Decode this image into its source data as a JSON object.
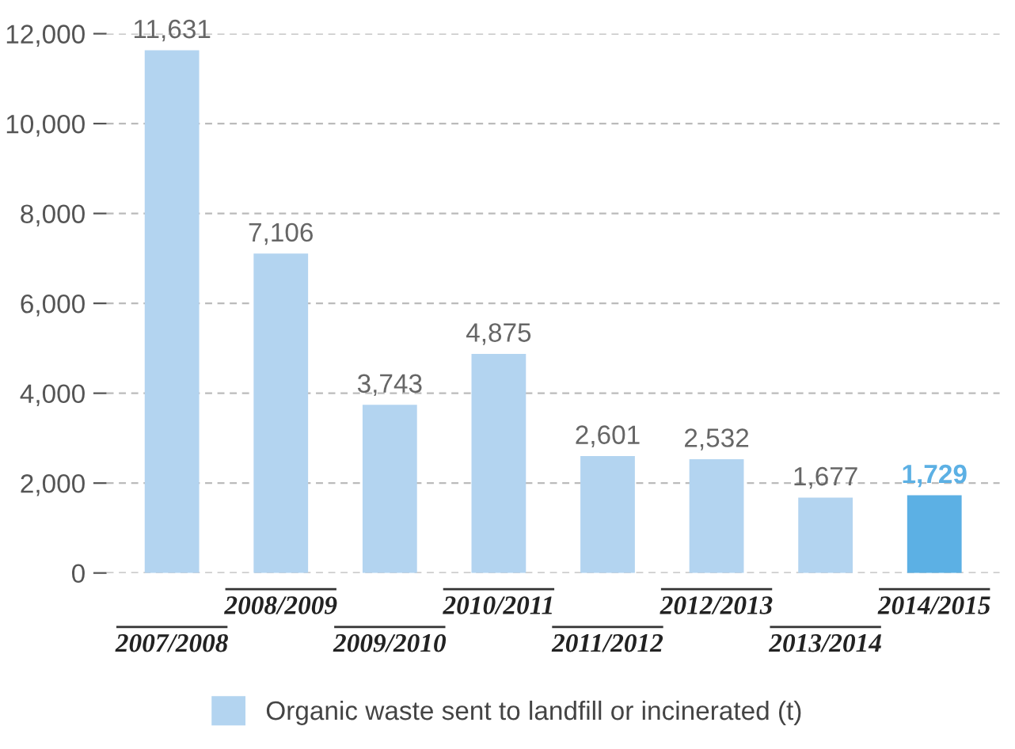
{
  "chart_data": {
    "type": "bar",
    "categories": [
      "2007/2008",
      "2008/2009",
      "2009/2010",
      "2010/2011",
      "2011/2012",
      "2012/2013",
      "2013/2014",
      "2014/2015"
    ],
    "series": [
      {
        "name": "Organic waste sent to landfill or incinerated (t)",
        "color": "#b3d4f0",
        "colors": [
          "#b3d4f0",
          "#b3d4f0",
          "#b3d4f0",
          "#b3d4f0",
          "#b3d4f0",
          "#b3d4f0",
          "#b3d4f0",
          "#5cb0e4"
        ],
        "values": [
          11631,
          7106,
          3743,
          4875,
          2601,
          2532,
          1677,
          1729
        ],
        "value_labels": [
          "11,631",
          "7,106",
          "3,743",
          "4,875",
          "2,601",
          "2,532",
          "1,677",
          "1,729"
        ]
      }
    ],
    "ylim": [
      0,
      12000
    ],
    "yticks": [
      {
        "value": 0,
        "label": "0"
      },
      {
        "value": 2000,
        "label": "2,000"
      },
      {
        "value": 4000,
        "label": "4,000"
      },
      {
        "value": 6000,
        "label": "6,000"
      },
      {
        "value": 8000,
        "label": "8,000"
      },
      {
        "value": 10000,
        "label": "10,000"
      },
      {
        "value": 12000,
        "label": "12,000"
      }
    ],
    "grid": "y",
    "legend": "bottom"
  }
}
